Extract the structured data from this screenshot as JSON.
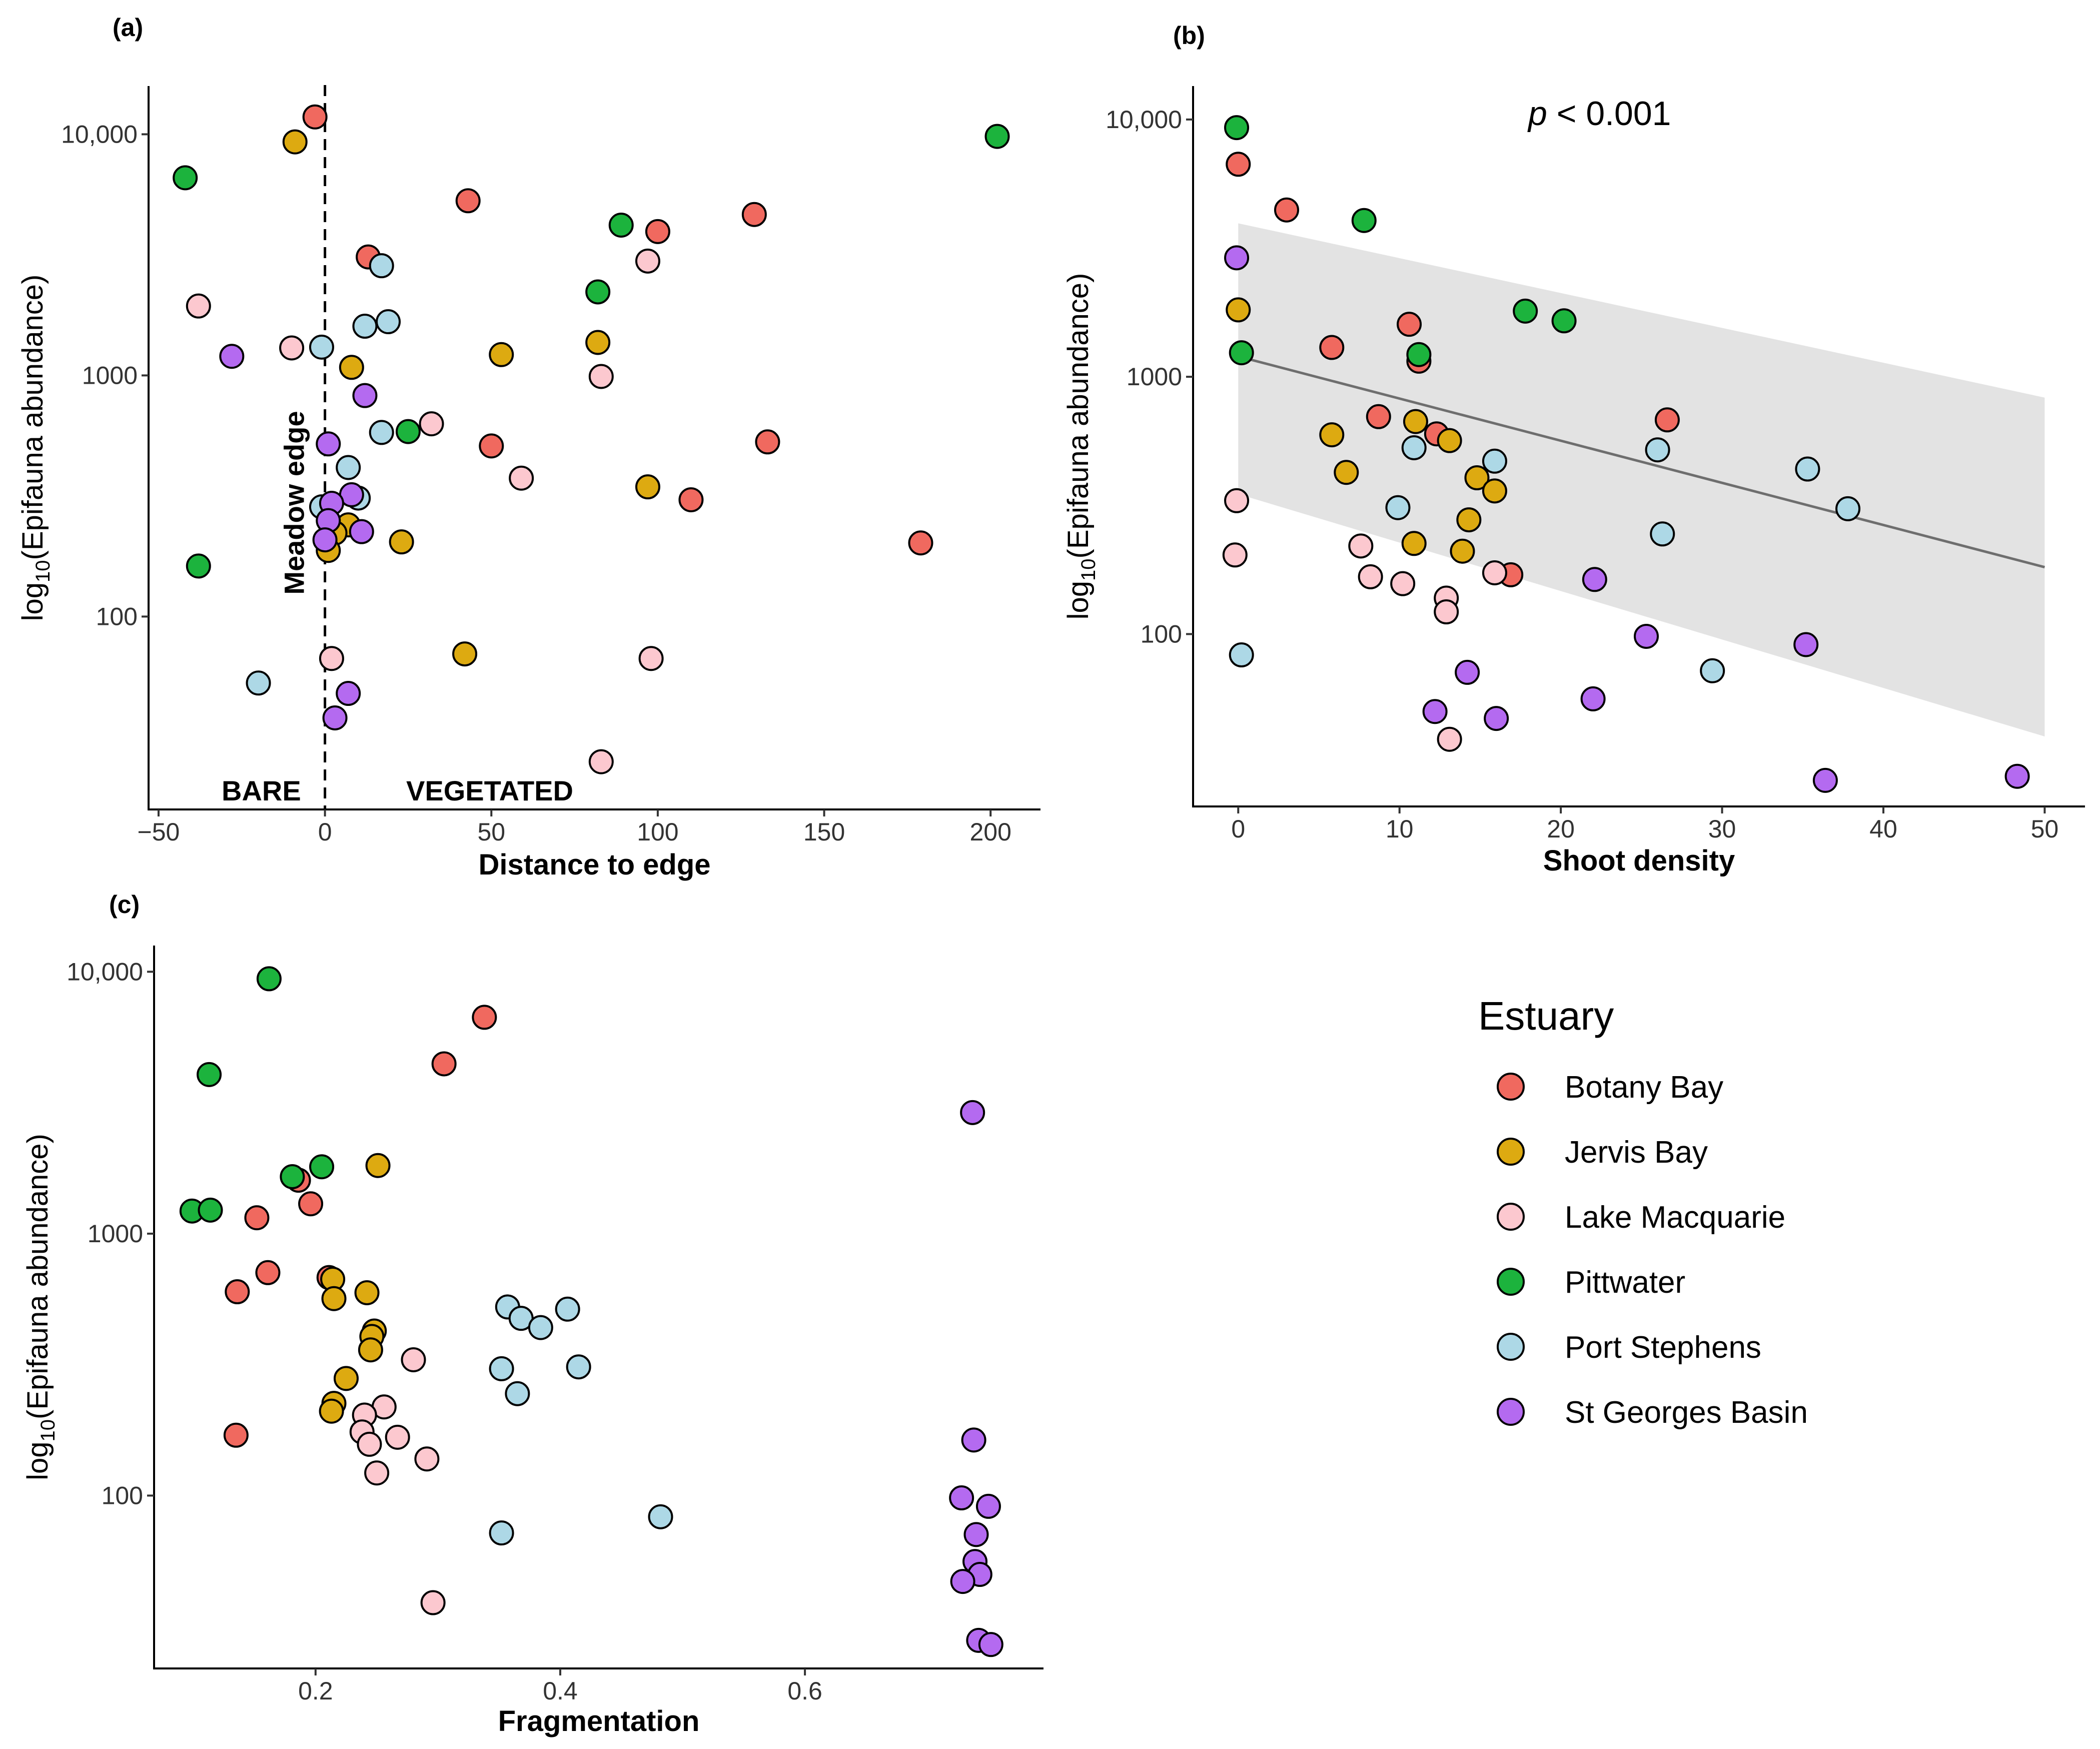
{
  "legend": {
    "title": "Estuary",
    "items": [
      {
        "label": "Botany Bay",
        "color": "#F0695F"
      },
      {
        "label": "Jervis Bay",
        "color": "#DDAA11"
      },
      {
        "label": "Lake Macquarie",
        "color": "#FCC8CF"
      },
      {
        "label": "Pittwater",
        "color": "#1CB33D"
      },
      {
        "label": "Port Stephens",
        "color": "#ADD8E6"
      },
      {
        "label": "St Georges Basin",
        "color": "#B46AF0"
      }
    ]
  },
  "chart_data": [
    {
      "panel": "(a)",
      "type": "scatter",
      "xlabel": "Distance to edge",
      "ylabel_main": "log",
      "ylabel_sub": "10",
      "ylabel_rest": "(Epifauna abundance)",
      "xlim": [
        -53,
        215
      ],
      "ylim_log": [
        1.2,
        4.2
      ],
      "xticks": [
        {
          "v": -50,
          "label": "−50"
        },
        {
          "v": 0,
          "label": "0"
        },
        {
          "v": 50,
          "label": "50"
        },
        {
          "v": 100,
          "label": "100"
        },
        {
          "v": 150,
          "label": "150"
        },
        {
          "v": 200,
          "label": "200"
        }
      ],
      "yticks": [
        {
          "v": 100,
          "label": "100"
        },
        {
          "v": 1000,
          "label": "1000"
        },
        {
          "v": 10000,
          "label": "10,000"
        }
      ],
      "edge_line_x": 0,
      "annotations": {
        "meadow_edge": "Meadow edge",
        "bare": "BARE",
        "vegetated": "VEGETATED"
      },
      "points": [
        {
          "x": -3,
          "y": 11800,
          "s": 0
        },
        {
          "x": 43,
          "y": 5300,
          "s": 0
        },
        {
          "x": 129,
          "y": 4650,
          "s": 0
        },
        {
          "x": 100,
          "y": 3950,
          "s": 0
        },
        {
          "x": 13,
          "y": 3100,
          "s": 0
        },
        {
          "x": 133,
          "y": 530,
          "s": 0
        },
        {
          "x": 50,
          "y": 510,
          "s": 0
        },
        {
          "x": 110,
          "y": 305,
          "s": 0
        },
        {
          "x": 179,
          "y": 202,
          "s": 0
        },
        {
          "x": -9,
          "y": 9300,
          "s": 1
        },
        {
          "x": 8,
          "y": 1080,
          "s": 1
        },
        {
          "x": 53,
          "y": 1220,
          "s": 1
        },
        {
          "x": 82,
          "y": 1370,
          "s": 1
        },
        {
          "x": 97,
          "y": 345,
          "s": 1
        },
        {
          "x": 7,
          "y": 240,
          "s": 1
        },
        {
          "x": 3,
          "y": 222,
          "s": 1
        },
        {
          "x": 1,
          "y": 188,
          "s": 1
        },
        {
          "x": 23,
          "y": 204,
          "s": 1
        },
        {
          "x": 42,
          "y": 70,
          "s": 1
        },
        {
          "x": -38,
          "y": 1940,
          "s": 2
        },
        {
          "x": -10,
          "y": 1300,
          "s": 2
        },
        {
          "x": 97,
          "y": 2980,
          "s": 2
        },
        {
          "x": 83,
          "y": 990,
          "s": 2
        },
        {
          "x": 32,
          "y": 630,
          "s": 2
        },
        {
          "x": 59,
          "y": 375,
          "s": 2
        },
        {
          "x": 2,
          "y": 67,
          "s": 2
        },
        {
          "x": 98,
          "y": 67,
          "s": 2
        },
        {
          "x": 83,
          "y": 25,
          "s": 2
        },
        {
          "x": -42,
          "y": 6600,
          "s": 3
        },
        {
          "x": 89,
          "y": 4200,
          "s": 3
        },
        {
          "x": 82,
          "y": 2220,
          "s": 3
        },
        {
          "x": 25,
          "y": 585,
          "s": 3
        },
        {
          "x": -38,
          "y": 162,
          "s": 3
        },
        {
          "x": 202,
          "y": 9800,
          "s": 3
        },
        {
          "x": 17,
          "y": 2850,
          "s": 4
        },
        {
          "x": 19,
          "y": 1670,
          "s": 4
        },
        {
          "x": 12,
          "y": 1600,
          "s": 4
        },
        {
          "x": -1,
          "y": 1310,
          "s": 4
        },
        {
          "x": 17,
          "y": 580,
          "s": 4
        },
        {
          "x": 7,
          "y": 415,
          "s": 4
        },
        {
          "x": 10,
          "y": 310,
          "s": 4
        },
        {
          "x": -1,
          "y": 285,
          "s": 4
        },
        {
          "x": -20,
          "y": 53,
          "s": 4
        },
        {
          "x": -28,
          "y": 1200,
          "s": 5
        },
        {
          "x": 12,
          "y": 825,
          "s": 5
        },
        {
          "x": 1,
          "y": 520,
          "s": 5
        },
        {
          "x": 8,
          "y": 320,
          "s": 5
        },
        {
          "x": 2,
          "y": 295,
          "s": 5
        },
        {
          "x": 1,
          "y": 250,
          "s": 5
        },
        {
          "x": 11,
          "y": 225,
          "s": 5
        },
        {
          "x": 0,
          "y": 208,
          "s": 5
        },
        {
          "x": 7,
          "y": 48,
          "s": 5
        },
        {
          "x": 3,
          "y": 38,
          "s": 5
        }
      ]
    },
    {
      "panel": "(b)",
      "type": "scatter",
      "xlabel": "Shoot density",
      "ylabel_main": "log",
      "ylabel_sub": "10",
      "ylabel_rest": "(Epifauna abundance)",
      "xlim": [
        -2.8,
        52.5
      ],
      "ylim_log": [
        1.33,
        4.13
      ],
      "xticks": [
        {
          "v": 0,
          "label": "0"
        },
        {
          "v": 10,
          "label": "10"
        },
        {
          "v": 20,
          "label": "20"
        },
        {
          "v": 30,
          "label": "30"
        },
        {
          "v": 40,
          "label": "40"
        },
        {
          "v": 50,
          "label": "50"
        }
      ],
      "yticks": [
        {
          "v": 100,
          "label": "100"
        },
        {
          "v": 1000,
          "label": "1000"
        },
        {
          "v": 10000,
          "label": "10,000"
        }
      ],
      "p_value": {
        "italic": "p",
        "rest": " < 0.001"
      },
      "fit": {
        "x": [
          0,
          50
        ],
        "y": [
          1200,
          182
        ]
      },
      "ribbon": {
        "x": [
          0,
          50
        ],
        "upper": [
          3950,
          830
        ],
        "lower": [
          350,
          40
        ]
      },
      "points": [
        {
          "x": 0,
          "y": 6700,
          "s": 0
        },
        {
          "x": 3,
          "y": 4450,
          "s": 0
        },
        {
          "x": 5.8,
          "y": 1300,
          "s": 0
        },
        {
          "x": 10.6,
          "y": 1600,
          "s": 0
        },
        {
          "x": 11.2,
          "y": 1150,
          "s": 0
        },
        {
          "x": 8.7,
          "y": 700,
          "s": 0
        },
        {
          "x": 12.3,
          "y": 600,
          "s": 0
        },
        {
          "x": 26.6,
          "y": 680,
          "s": 0
        },
        {
          "x": 16.9,
          "y": 170,
          "s": 0
        },
        {
          "x": 0,
          "y": 1820,
          "s": 1
        },
        {
          "x": 5.8,
          "y": 595,
          "s": 1
        },
        {
          "x": 6.7,
          "y": 425,
          "s": 1
        },
        {
          "x": 11,
          "y": 670,
          "s": 1
        },
        {
          "x": 13.1,
          "y": 565,
          "s": 1
        },
        {
          "x": 14.8,
          "y": 405,
          "s": 1
        },
        {
          "x": 15.9,
          "y": 360,
          "s": 1
        },
        {
          "x": 14.3,
          "y": 278,
          "s": 1
        },
        {
          "x": 10.9,
          "y": 225,
          "s": 1
        },
        {
          "x": 13.9,
          "y": 210,
          "s": 1
        },
        {
          "x": -0.1,
          "y": 330,
          "s": 2
        },
        {
          "x": -0.2,
          "y": 203,
          "s": 2
        },
        {
          "x": 7.6,
          "y": 220,
          "s": 2
        },
        {
          "x": 8.2,
          "y": 167,
          "s": 2
        },
        {
          "x": 10.2,
          "y": 157,
          "s": 2
        },
        {
          "x": 12.9,
          "y": 138,
          "s": 2
        },
        {
          "x": 12.9,
          "y": 122,
          "s": 2
        },
        {
          "x": 15.9,
          "y": 173,
          "s": 2
        },
        {
          "x": 13.1,
          "y": 39,
          "s": 2
        },
        {
          "x": -0.1,
          "y": 9300,
          "s": 3
        },
        {
          "x": 7.8,
          "y": 4050,
          "s": 3
        },
        {
          "x": 0.2,
          "y": 1240,
          "s": 3
        },
        {
          "x": 11.2,
          "y": 1220,
          "s": 3
        },
        {
          "x": 17.8,
          "y": 1800,
          "s": 3
        },
        {
          "x": 20.2,
          "y": 1650,
          "s": 3
        },
        {
          "x": 0.2,
          "y": 83,
          "s": 4
        },
        {
          "x": 9.9,
          "y": 310,
          "s": 4
        },
        {
          "x": 10.9,
          "y": 530,
          "s": 4
        },
        {
          "x": 15.9,
          "y": 470,
          "s": 4
        },
        {
          "x": 26,
          "y": 520,
          "s": 4
        },
        {
          "x": 26.3,
          "y": 245,
          "s": 4
        },
        {
          "x": 29.4,
          "y": 72,
          "s": 4
        },
        {
          "x": 35.3,
          "y": 438,
          "s": 4
        },
        {
          "x": 37.8,
          "y": 307,
          "s": 4
        },
        {
          "x": -0.1,
          "y": 2900,
          "s": 5
        },
        {
          "x": 22.1,
          "y": 163,
          "s": 5
        },
        {
          "x": 25.3,
          "y": 98,
          "s": 5
        },
        {
          "x": 14.2,
          "y": 71,
          "s": 5
        },
        {
          "x": 12.2,
          "y": 50,
          "s": 5
        },
        {
          "x": 16,
          "y": 47,
          "s": 5
        },
        {
          "x": 22,
          "y": 56,
          "s": 5
        },
        {
          "x": 35.2,
          "y": 91,
          "s": 5
        },
        {
          "x": 36.4,
          "y": 27,
          "s": 5
        },
        {
          "x": 48.3,
          "y": 28,
          "s": 5
        }
      ]
    },
    {
      "panel": "(c)",
      "type": "scatter",
      "xlabel": "Fragmentation",
      "ylabel_main": "log",
      "ylabel_sub": "10",
      "ylabel_rest": "(Epifauna abundance)",
      "xlim": [
        0.068,
        0.795
      ],
      "ylim_log": [
        1.34,
        4.1
      ],
      "xticks": [
        {
          "v": 0.2,
          "label": "0.2"
        },
        {
          "v": 0.4,
          "label": "0.4"
        },
        {
          "v": 0.6,
          "label": "0.6"
        }
      ],
      "yticks": [
        {
          "v": 100,
          "label": "100"
        },
        {
          "v": 1000,
          "label": "1000"
        },
        {
          "v": 10000,
          "label": "10,000"
        }
      ],
      "points": [
        {
          "x": 0.338,
          "y": 6700,
          "s": 0
        },
        {
          "x": 0.305,
          "y": 4450,
          "s": 0
        },
        {
          "x": 0.186,
          "y": 1600,
          "s": 0
        },
        {
          "x": 0.196,
          "y": 1300,
          "s": 0
        },
        {
          "x": 0.152,
          "y": 1150,
          "s": 0
        },
        {
          "x": 0.161,
          "y": 710,
          "s": 0
        },
        {
          "x": 0.136,
          "y": 600,
          "s": 0
        },
        {
          "x": 0.211,
          "y": 680,
          "s": 0
        },
        {
          "x": 0.135,
          "y": 170,
          "s": 0
        },
        {
          "x": 0.251,
          "y": 1820,
          "s": 1
        },
        {
          "x": 0.214,
          "y": 670,
          "s": 1
        },
        {
          "x": 0.242,
          "y": 595,
          "s": 1
        },
        {
          "x": 0.215,
          "y": 565,
          "s": 1
        },
        {
          "x": 0.248,
          "y": 425,
          "s": 1
        },
        {
          "x": 0.246,
          "y": 405,
          "s": 1
        },
        {
          "x": 0.245,
          "y": 360,
          "s": 1
        },
        {
          "x": 0.225,
          "y": 280,
          "s": 1
        },
        {
          "x": 0.215,
          "y": 225,
          "s": 1
        },
        {
          "x": 0.213,
          "y": 210,
          "s": 1
        },
        {
          "x": 0.28,
          "y": 330,
          "s": 2
        },
        {
          "x": 0.256,
          "y": 218,
          "s": 2
        },
        {
          "x": 0.24,
          "y": 203,
          "s": 2
        },
        {
          "x": 0.238,
          "y": 175,
          "s": 2
        },
        {
          "x": 0.244,
          "y": 157,
          "s": 2
        },
        {
          "x": 0.267,
          "y": 167,
          "s": 2
        },
        {
          "x": 0.291,
          "y": 138,
          "s": 2
        },
        {
          "x": 0.25,
          "y": 122,
          "s": 2
        },
        {
          "x": 0.296,
          "y": 39,
          "s": 2
        },
        {
          "x": 0.162,
          "y": 9400,
          "s": 3
        },
        {
          "x": 0.113,
          "y": 4050,
          "s": 3
        },
        {
          "x": 0.181,
          "y": 1650,
          "s": 3
        },
        {
          "x": 0.205,
          "y": 1800,
          "s": 3
        },
        {
          "x": 0.099,
          "y": 1220,
          "s": 3
        },
        {
          "x": 0.114,
          "y": 1230,
          "s": 3
        },
        {
          "x": 0.357,
          "y": 525,
          "s": 4
        },
        {
          "x": 0.368,
          "y": 475,
          "s": 4
        },
        {
          "x": 0.384,
          "y": 438,
          "s": 4
        },
        {
          "x": 0.406,
          "y": 515,
          "s": 4
        },
        {
          "x": 0.352,
          "y": 305,
          "s": 4
        },
        {
          "x": 0.415,
          "y": 310,
          "s": 4
        },
        {
          "x": 0.365,
          "y": 245,
          "s": 4
        },
        {
          "x": 0.352,
          "y": 72,
          "s": 4
        },
        {
          "x": 0.482,
          "y": 83,
          "s": 4
        },
        {
          "x": 0.737,
          "y": 2900,
          "s": 5
        },
        {
          "x": 0.738,
          "y": 163,
          "s": 5
        },
        {
          "x": 0.728,
          "y": 98,
          "s": 5
        },
        {
          "x": 0.75,
          "y": 91,
          "s": 5
        },
        {
          "x": 0.74,
          "y": 71,
          "s": 5
        },
        {
          "x": 0.739,
          "y": 56,
          "s": 5
        },
        {
          "x": 0.743,
          "y": 50,
          "s": 5
        },
        {
          "x": 0.729,
          "y": 47,
          "s": 5
        },
        {
          "x": 0.742,
          "y": 28,
          "s": 5
        },
        {
          "x": 0.752,
          "y": 27,
          "s": 5
        }
      ]
    }
  ]
}
